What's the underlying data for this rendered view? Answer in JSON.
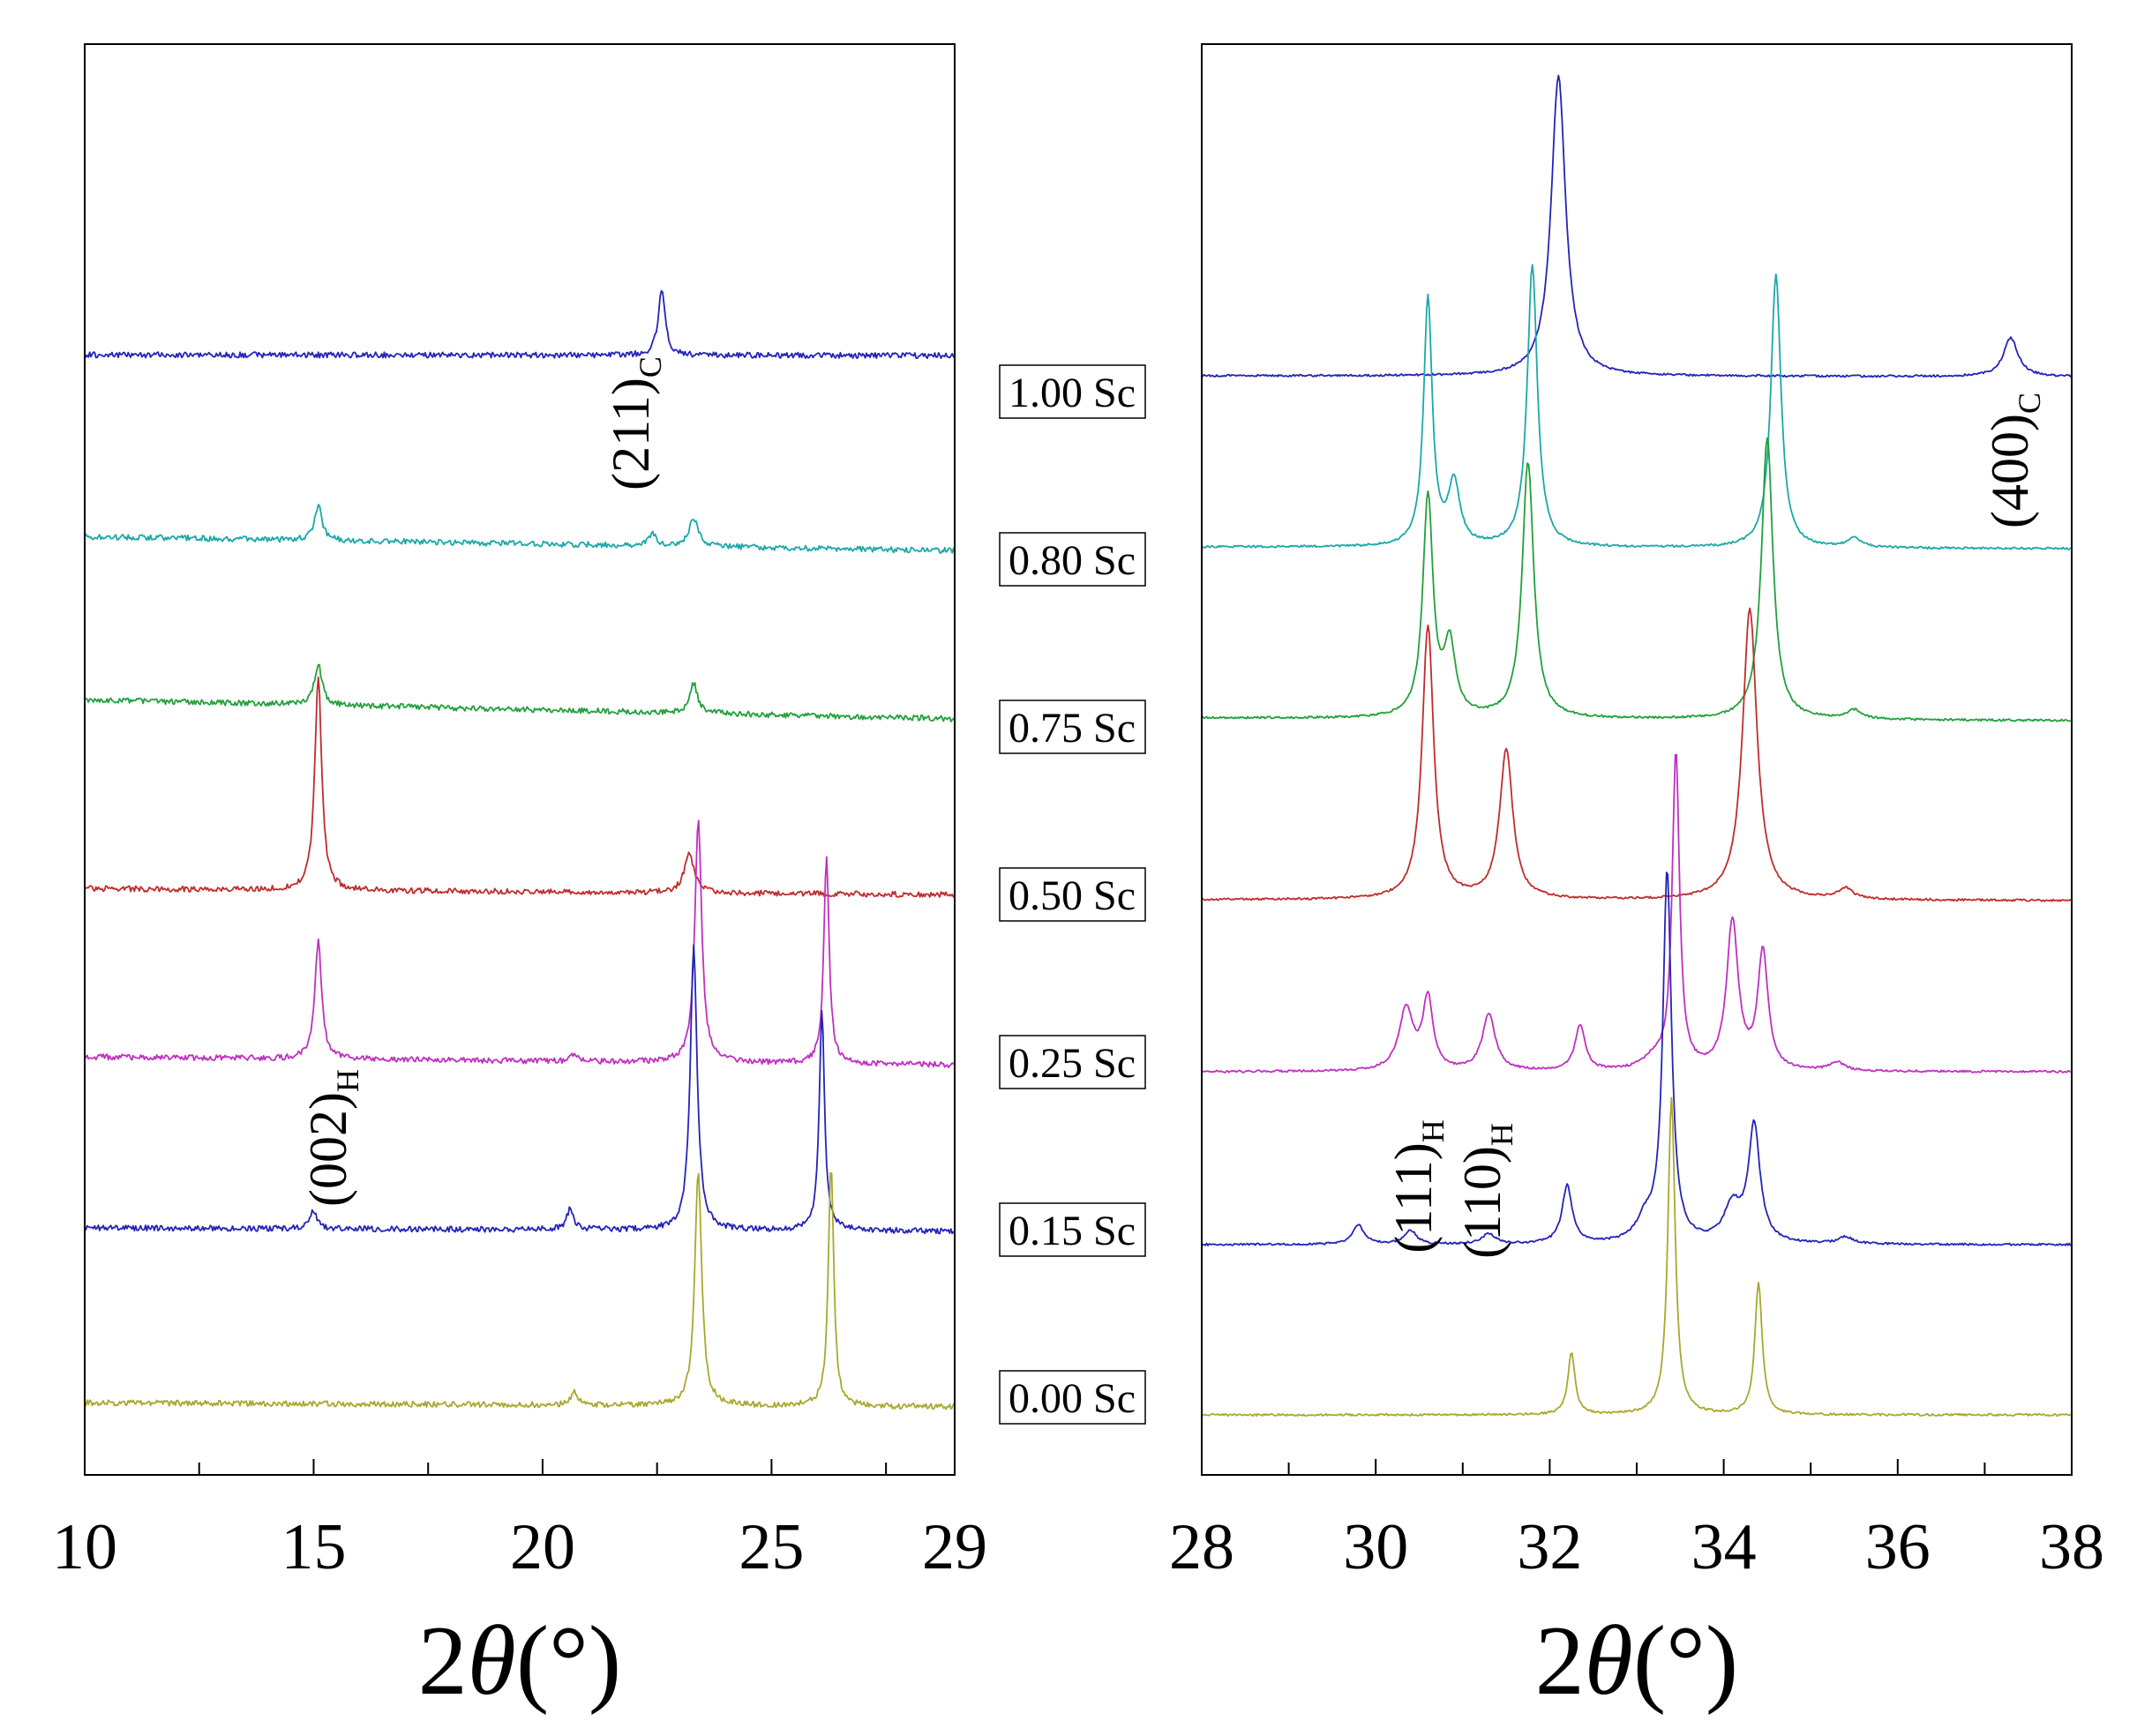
{
  "chart_data": [
    {
      "type": "line",
      "panel": "left",
      "xlabel_prefix": "2",
      "xlabel_symbol": "θ",
      "xlabel_unit": "(°)",
      "xlim": [
        10,
        29
      ],
      "major_ticks": [
        10,
        15,
        20,
        25,
        29
      ],
      "minor_ticks": [
        12.5,
        17.5,
        22.5,
        27.5
      ],
      "y_axis": "offset stacked intensity (a.u.), no tick labels",
      "series": [
        {
          "name": "1.00 Sc",
          "color": "#2424b8",
          "baseline": [
            0.97,
            0.95
          ],
          "peaks": [
            {
              "x": 22.6,
              "h": 1.65,
              "w": 0.09
            }
          ]
        },
        {
          "name": "0.80 Sc",
          "color": "#1aa8a8",
          "baseline": [
            1.1,
            0.75
          ],
          "peaks": [
            {
              "x": 15.1,
              "h": 0.85,
              "w": 0.1
            },
            {
              "x": 22.4,
              "h": 0.3,
              "w": 0.1
            },
            {
              "x": 23.3,
              "h": 0.7,
              "w": 0.12
            }
          ]
        },
        {
          "name": "0.75 Sc",
          "color": "#22a03c",
          "baseline": [
            1.25,
            0.78
          ],
          "peaks": [
            {
              "x": 15.1,
              "h": 1.0,
              "w": 0.1
            },
            {
              "x": 23.3,
              "h": 0.75,
              "w": 0.1
            }
          ]
        },
        {
          "name": "0.50 Sc",
          "color": "#c02c2c",
          "baseline": [
            0.9,
            0.75
          ],
          "peaks": [
            {
              "x": 15.1,
              "h": 5.3,
              "w": 0.09
            },
            {
              "x": 23.2,
              "h": 0.95,
              "w": 0.13
            }
          ]
        },
        {
          "name": "0.25 Sc",
          "color": "#c030c0",
          "baseline": [
            0.95,
            0.75
          ],
          "peaks": [
            {
              "x": 15.1,
              "h": 2.9,
              "w": 0.09
            },
            {
              "x": 20.7,
              "h": 0.2,
              "w": 0.08
            },
            {
              "x": 23.4,
              "h": 6.0,
              "w": 0.09
            },
            {
              "x": 26.2,
              "h": 5.1,
              "w": 0.07
            }
          ]
        },
        {
          "name": "0.15 Sc",
          "color": "#2424b8",
          "baseline": [
            0.8,
            0.72
          ],
          "peaks": [
            {
              "x": 15.0,
              "h": 0.45,
              "w": 0.09
            },
            {
              "x": 20.6,
              "h": 0.5,
              "w": 0.09
            },
            {
              "x": 23.3,
              "h": 7.0,
              "w": 0.09
            },
            {
              "x": 26.1,
              "h": 5.4,
              "w": 0.07
            }
          ]
        },
        {
          "name": "0.00 Sc",
          "color": "#a8a830",
          "baseline": [
            0.75,
            0.65
          ],
          "peaks": [
            {
              "x": 20.7,
              "h": 0.35,
              "w": 0.08
            },
            {
              "x": 23.4,
              "h": 5.8,
              "w": 0.09
            },
            {
              "x": 26.3,
              "h": 6.0,
              "w": 0.07
            }
          ]
        }
      ],
      "annotations": [
        {
          "text": "(211)",
          "subscript": "C",
          "x": 22.2
        },
        {
          "text": "(002)",
          "subscript": "H",
          "x": 15.1
        }
      ]
    },
    {
      "type": "line",
      "panel": "right",
      "xlabel_prefix": "2",
      "xlabel_symbol": "θ",
      "xlabel_unit": "(°)",
      "xlim": [
        28,
        38
      ],
      "major_ticks": [
        28,
        30,
        32,
        34,
        36,
        38
      ],
      "minor_ticks": [
        29,
        31,
        33,
        35,
        37
      ],
      "y_axis": "offset stacked intensity (a.u.), no tick labels",
      "series": [
        {
          "name": "1.00 Sc",
          "color": "#2424b8",
          "baseline": [
            0.9,
            0.85
          ],
          "peaks": [
            {
              "x": 32.1,
              "h": 17.0,
              "w": 0.1
            },
            {
              "x": 37.3,
              "h": 2.2,
              "w": 0.1
            }
          ]
        },
        {
          "name": "0.80 Sc",
          "color": "#1aa8a8",
          "baseline": [
            1.1,
            1.0
          ],
          "peaks": [
            {
              "x": 30.6,
              "h": 14.0,
              "w": 0.06
            },
            {
              "x": 30.9,
              "h": 3.5,
              "w": 0.08
            },
            {
              "x": 31.8,
              "h": 16.0,
              "w": 0.07
            },
            {
              "x": 34.6,
              "h": 15.5,
              "w": 0.07
            },
            {
              "x": 35.5,
              "h": 0.5,
              "w": 0.1
            }
          ]
        },
        {
          "name": "0.75 Sc",
          "color": "#22a03c",
          "baseline": [
            1.1,
            0.95
          ],
          "peaks": [
            {
              "x": 30.6,
              "h": 12.5,
              "w": 0.07
            },
            {
              "x": 30.85,
              "h": 4.0,
              "w": 0.08
            },
            {
              "x": 31.75,
              "h": 14.5,
              "w": 0.08
            },
            {
              "x": 34.5,
              "h": 16.0,
              "w": 0.08
            },
            {
              "x": 35.5,
              "h": 0.5,
              "w": 0.1
            }
          ]
        },
        {
          "name": "0.50 Sc",
          "color": "#c02c2c",
          "baseline": [
            0.8,
            0.75
          ],
          "peaks": [
            {
              "x": 30.6,
              "h": 15.5,
              "w": 0.08
            },
            {
              "x": 31.5,
              "h": 8.5,
              "w": 0.09
            },
            {
              "x": 34.3,
              "h": 16.5,
              "w": 0.1
            },
            {
              "x": 35.4,
              "h": 0.6,
              "w": 0.1
            }
          ]
        },
        {
          "name": "0.25 Sc",
          "color": "#c030c0",
          "baseline": [
            0.8,
            0.8
          ],
          "peaks": [
            {
              "x": 30.35,
              "h": 3.5,
              "w": 0.1
            },
            {
              "x": 30.6,
              "h": 4.0,
              "w": 0.07
            },
            {
              "x": 31.3,
              "h": 3.2,
              "w": 0.09
            },
            {
              "x": 32.35,
              "h": 2.6,
              "w": 0.07
            },
            {
              "x": 33.2,
              "h": 0.6,
              "w": 0.15
            },
            {
              "x": 33.45,
              "h": 18.0,
              "w": 0.05
            },
            {
              "x": 34.1,
              "h": 8.4,
              "w": 0.08
            },
            {
              "x": 34.45,
              "h": 6.7,
              "w": 0.07
            },
            {
              "x": 35.3,
              "h": 0.5,
              "w": 0.1
            }
          ]
        },
        {
          "name": "0.15 Sc",
          "color": "#2424b8",
          "baseline": [
            0.75,
            0.75
          ],
          "peaks": [
            {
              "x": 29.8,
              "h": 1.1,
              "w": 0.08
            },
            {
              "x": 30.4,
              "h": 0.8,
              "w": 0.08
            },
            {
              "x": 31.3,
              "h": 0.6,
              "w": 0.09
            },
            {
              "x": 32.2,
              "h": 3.3,
              "w": 0.07
            },
            {
              "x": 33.1,
              "h": 1.2,
              "w": 0.12
            },
            {
              "x": 33.35,
              "h": 21.0,
              "w": 0.06
            },
            {
              "x": 34.1,
              "h": 2.0,
              "w": 0.12
            },
            {
              "x": 34.35,
              "h": 6.6,
              "w": 0.08
            },
            {
              "x": 35.4,
              "h": 0.4,
              "w": 0.1
            }
          ]
        },
        {
          "name": "0.00 Sc",
          "color": "#a8a830",
          "baseline": [
            0.6,
            0.6
          ],
          "peaks": [
            {
              "x": 32.25,
              "h": 3.5,
              "w": 0.05
            },
            {
              "x": 33.4,
              "h": 18.0,
              "w": 0.05
            },
            {
              "x": 34.4,
              "h": 7.5,
              "w": 0.05
            }
          ]
        }
      ],
      "annotations": [
        {
          "text": "(400)",
          "subscript": "C",
          "x": 37.2
        },
        {
          "text": "(111)",
          "subscript": "H",
          "x": 30.3
        },
        {
          "text": "(110)",
          "subscript": "H",
          "x": 31.2
        }
      ]
    }
  ]
}
